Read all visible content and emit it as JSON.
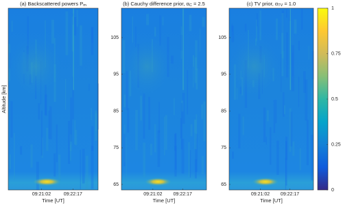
{
  "chart_data": [
    {
      "type": "heatmap",
      "title": [
        {
          "text": "(a) Backscattered powers P"
        },
        {
          "sub": "m"
        }
      ],
      "xlabel": "Time [UT]",
      "ylabel": "Altitude [km]",
      "xticks": [
        "09:21:02",
        "09:22:17"
      ],
      "ylim": [
        63.5,
        113
      ]
    },
    {
      "type": "heatmap",
      "title": [
        {
          "text": "(b) Cauchy difference prior, α"
        },
        {
          "sub": "C"
        },
        {
          "text": " = 2.5"
        }
      ],
      "xlabel": "Time [UT]",
      "xticks": [
        "09:21:02",
        "09:22:17"
      ],
      "ylim": [
        63.5,
        113
      ],
      "yticks": [
        65,
        75,
        85,
        95,
        105
      ]
    },
    {
      "type": "heatmap",
      "title": [
        {
          "text": "(c) TV prior, α"
        },
        {
          "sub": "TV"
        },
        {
          "text": " = 1.0"
        }
      ],
      "xlabel": "Time [UT]",
      "xticks": [
        "09:21:02",
        "09:22:17"
      ],
      "ylim": [
        63.5,
        113
      ],
      "yticks": [
        65,
        75,
        85,
        95,
        105
      ]
    },
    {
      "type": "colorbar",
      "ylim": [
        0,
        1
      ],
      "yticks": [
        0,
        0.25,
        0.5,
        0.75,
        1
      ],
      "colormap": [
        "#352a87",
        "#0f5cdd",
        "#1481d6",
        "#06a4ca",
        "#2eb7a4",
        "#87bf77",
        "#d1bb59",
        "#fec832",
        "#f9fb0e"
      ]
    }
  ]
}
